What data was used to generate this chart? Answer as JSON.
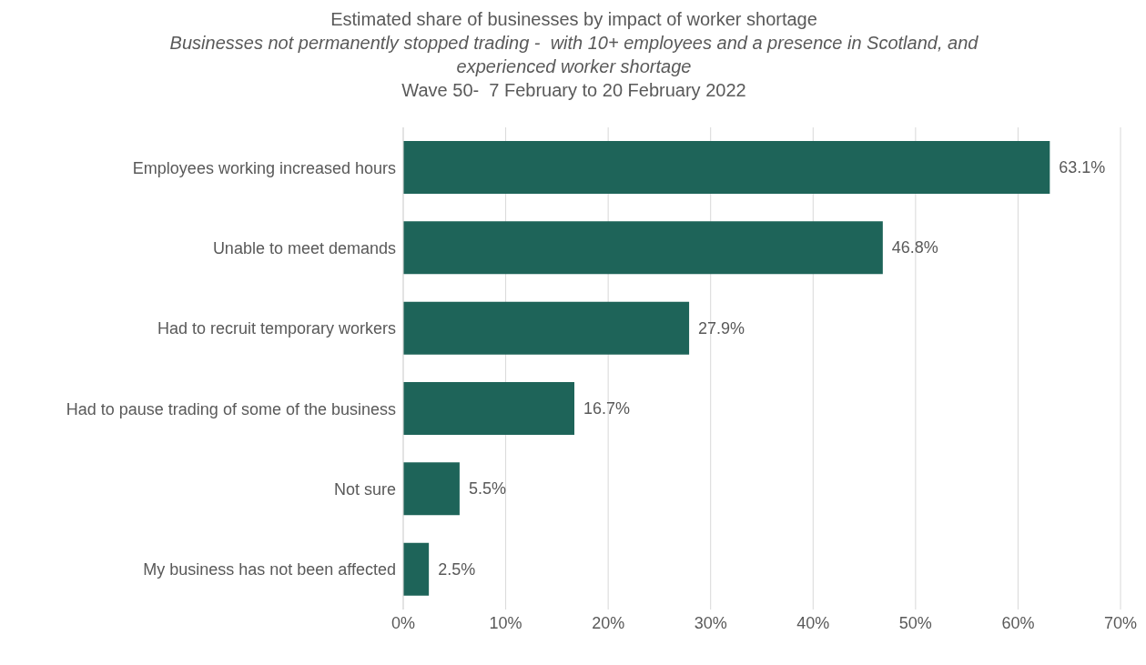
{
  "chart_data": {
    "type": "bar",
    "orientation": "horizontal",
    "title": "Estimated share of businesses by impact of worker shortage",
    "subtitle": "Businesses not permanently stopped trading -  with 10+ employees and a presence in Scotland, and experienced worker shortage",
    "annotations": [
      "Wave 50-  7 February to 20 February 2022"
    ],
    "categories": [
      "Employees working increased hours",
      "Unable to meet demands",
      "Had to recruit temporary workers",
      "Had to pause trading of some of the business",
      "Not sure",
      "My business has not been affected"
    ],
    "values": [
      63.1,
      46.8,
      27.9,
      16.7,
      5.5,
      2.5
    ],
    "value_labels": [
      "63.1%",
      "46.8%",
      "27.9%",
      "16.7%",
      "5.5%",
      "2.5%"
    ],
    "color": "#1e6459",
    "xlim": [
      0,
      70
    ],
    "xticks": [
      {
        "value": 0,
        "label": "0%"
      },
      {
        "value": 10,
        "label": "10%"
      },
      {
        "value": 20,
        "label": "20%"
      },
      {
        "value": 30,
        "label": "30%"
      },
      {
        "value": 40,
        "label": "40%"
      },
      {
        "value": 50,
        "label": "50%"
      },
      {
        "value": 60,
        "label": "60%"
      },
      {
        "value": 70,
        "label": "70%"
      }
    ],
    "grid": "x"
  }
}
